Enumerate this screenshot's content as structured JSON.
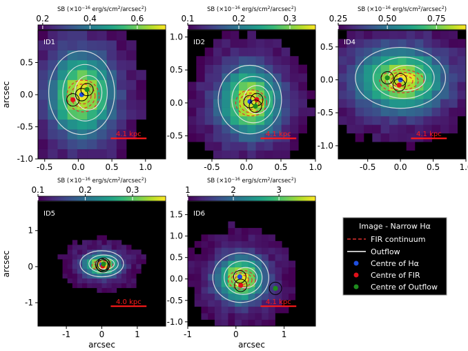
{
  "colors": {
    "viridis": [
      "#440154",
      "#482878",
      "#3e4989",
      "#31688e",
      "#26828e",
      "#1f9e89",
      "#35b779",
      "#6ece58",
      "#b5de2b",
      "#fde725"
    ],
    "fir": "#e0302f",
    "outflow": "#e8e8e8",
    "halpha_centre": "#1f4fe0",
    "fir_centre": "#e0101a",
    "outflow_centre": "#1e8c1e",
    "scalebar": "#ff1a1a"
  },
  "chart_data": [
    {
      "type": "heatmap",
      "id_label": "ID1",
      "colorbar_label": "SB (×10$^{-16}$ erg/s/cm2/arcsec2)",
      "colorbar_ticks": [
        "0.2",
        "0.4",
        "0.6"
      ],
      "colorbar_range": [
        0.18,
        0.72
      ],
      "xlim": [
        -0.6,
        1.3
      ],
      "ylim": [
        -1.0,
        1.0
      ],
      "xticks": [
        "-0.5",
        "0.0",
        "0.5",
        "1.0"
      ],
      "yticks": [
        "-1.0",
        "-0.5",
        "0.0",
        "0.5"
      ],
      "ylabel": "arcsec",
      "xlabel": "",
      "scalebar_label": "4.1 kpc",
      "halpha_centre": [
        0.05,
        0.0
      ],
      "fir_centre": [
        -0.08,
        -0.08
      ],
      "outflow_centre": [
        0.13,
        0.08
      ]
    },
    {
      "type": "heatmap",
      "id_label": "ID2",
      "colorbar_label": "SB (×10$^{-16}$ erg/s/cm2/arcsec2)",
      "colorbar_ticks": [
        "0.1",
        "0.2",
        "0.3"
      ],
      "colorbar_range": [
        0.1,
        0.35
      ],
      "xlim": [
        -0.85,
        1.0
      ],
      "ylim": [
        -0.85,
        1.1
      ],
      "xticks": [
        "-0.5",
        "0.0",
        "0.5",
        "1.0"
      ],
      "yticks": [
        "-0.5",
        "0.0",
        "0.5",
        "1.0"
      ],
      "ylabel": "",
      "xlabel": "",
      "scalebar_label": "4.1 kpc",
      "halpha_centre": [
        0.05,
        0.02
      ],
      "fir_centre": [
        0.15,
        0.05
      ],
      "outflow_centre": [
        0.13,
        -0.05
      ]
    },
    {
      "type": "heatmap",
      "id_label": "ID4",
      "colorbar_label": "SB (×10$^{-16}$ erg/s/cm2/arcsec2)",
      "colorbar_ticks": [
        "0.25",
        "0.50",
        "0.75"
      ],
      "colorbar_range": [
        0.25,
        0.9
      ],
      "xlim": [
        -0.95,
        1.0
      ],
      "ylim": [
        -1.2,
        0.75
      ],
      "xticks": [
        "-0.5",
        "0.0",
        "0.5",
        "1.0"
      ],
      "yticks": [
        "-1.0",
        "-0.5",
        "0.0",
        "0.5"
      ],
      "ylabel": "",
      "xlabel": "",
      "scalebar_label": "4.1 kpc",
      "halpha_centre": [
        0.0,
        0.0
      ],
      "fir_centre": [
        -0.02,
        -0.08
      ],
      "outflow_centre": [
        -0.2,
        0.03
      ]
    },
    {
      "type": "heatmap",
      "id_label": "ID5",
      "colorbar_label": "SB (×10$^{-16}$ erg/s/cm2/arcsec2)",
      "colorbar_ticks": [
        "0.1",
        "0.2",
        "0.3"
      ],
      "colorbar_range": [
        0.1,
        0.37
      ],
      "xlim": [
        -1.8,
        1.8
      ],
      "ylim": [
        -1.65,
        1.8
      ],
      "xticks": [
        "-1",
        "0",
        "1"
      ],
      "yticks": [
        "-1",
        "0",
        "1"
      ],
      "ylabel": "arcsec",
      "xlabel": "arcsec",
      "scalebar_label": "4.0 kpc",
      "halpha_centre": [
        0.0,
        0.05
      ],
      "fir_centre": [
        0.03,
        0.02
      ],
      "outflow_centre": [
        0.05,
        0.07
      ]
    },
    {
      "type": "heatmap",
      "id_label": "ID6",
      "colorbar_label": "SB (×10$^{-16}$ erg/s/cm2/arcsec2)",
      "colorbar_ticks": [
        "1",
        "2",
        "3"
      ],
      "colorbar_range": [
        1.0,
        3.8
      ],
      "xlim": [
        -1.0,
        1.65
      ],
      "ylim": [
        -1.1,
        1.8
      ],
      "xticks": [
        "-1",
        "0",
        "1"
      ],
      "yticks": [
        "-1.0",
        "-0.5",
        "0.0",
        "0.5",
        "1.0",
        "1.5"
      ],
      "ylabel": "",
      "xlabel": "arcsec",
      "scalebar_label": "4.1 kpc",
      "halpha_centre": [
        0.08,
        0.05
      ],
      "fir_centre": [
        0.1,
        -0.15
      ],
      "outflow_centre": [
        0.82,
        -0.22
      ]
    }
  ],
  "legend": {
    "title": "Image - Narrow Hα",
    "items": [
      {
        "label": "FIR continuum",
        "kind": "dashed"
      },
      {
        "label": "Outflow",
        "kind": "line"
      },
      {
        "label": "Centre of Hα",
        "kind": "blue"
      },
      {
        "label": "Centre of FIR",
        "kind": "red"
      },
      {
        "label": "Centre of Outflow",
        "kind": "green"
      }
    ]
  }
}
